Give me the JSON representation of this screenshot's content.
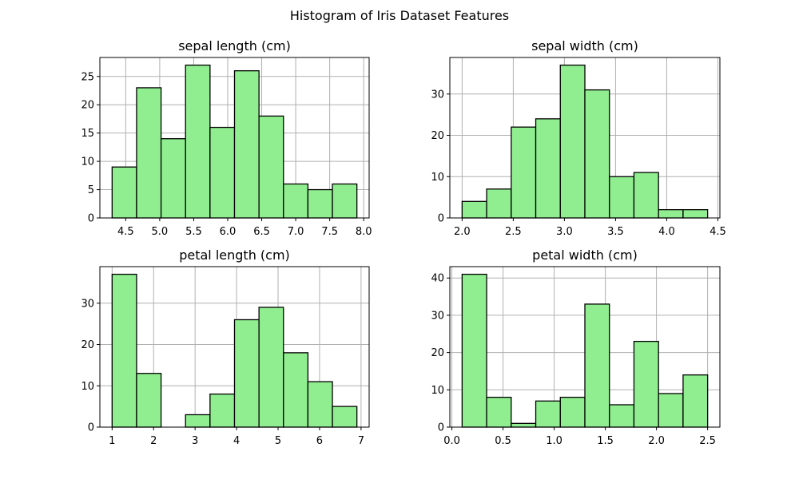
{
  "figure": {
    "title": "Histogram of Iris Dataset Features"
  },
  "style": {
    "bar_fill": "#90ee90",
    "bar_edge": "#000000",
    "grid_color": "#b0b0b0",
    "axis_color": "#000000"
  },
  "chart_data": [
    {
      "type": "bar",
      "title": "sepal length (cm)",
      "xlabel": "",
      "ylabel": "",
      "bin_edges": [
        4.3,
        4.66,
        5.02,
        5.38,
        5.74,
        6.1,
        6.46,
        6.82,
        7.18,
        7.54,
        7.9
      ],
      "values": [
        9,
        23,
        14,
        27,
        16,
        26,
        18,
        6,
        5,
        6
      ],
      "xlim": [
        4.12,
        8.08
      ],
      "ylim": [
        0,
        28.35
      ],
      "xticks": [
        4.5,
        5.0,
        5.5,
        6.0,
        6.5,
        7.0,
        7.5,
        8.0
      ],
      "xtick_labels": [
        "4.5",
        "5.0",
        "5.5",
        "6.0",
        "6.5",
        "7.0",
        "7.5",
        "8.0"
      ],
      "yticks": [
        0,
        5,
        10,
        15,
        20,
        25
      ],
      "ytick_labels": [
        "0",
        "5",
        "10",
        "15",
        "20",
        "25"
      ],
      "grid": true
    },
    {
      "type": "bar",
      "title": "sepal width (cm)",
      "xlabel": "",
      "ylabel": "",
      "bin_edges": [
        2.0,
        2.24,
        2.48,
        2.72,
        2.96,
        3.2,
        3.44,
        3.68,
        3.92,
        4.16,
        4.4
      ],
      "values": [
        4,
        7,
        22,
        24,
        37,
        31,
        10,
        11,
        2,
        2
      ],
      "xlim": [
        1.88,
        4.52
      ],
      "ylim": [
        0,
        38.85
      ],
      "xticks": [
        2.0,
        2.5,
        3.0,
        3.5,
        4.0,
        4.5
      ],
      "xtick_labels": [
        "2.0",
        "2.5",
        "3.0",
        "3.5",
        "4.0",
        "4.5"
      ],
      "yticks": [
        0,
        10,
        20,
        30
      ],
      "ytick_labels": [
        "0",
        "10",
        "20",
        "30"
      ],
      "grid": true
    },
    {
      "type": "bar",
      "title": "petal length (cm)",
      "xlabel": "",
      "ylabel": "",
      "bin_edges": [
        1.0,
        1.59,
        2.18,
        2.77,
        3.36,
        3.95,
        4.54,
        5.13,
        5.72,
        6.31,
        6.9
      ],
      "values": [
        37,
        13,
        0,
        3,
        8,
        26,
        29,
        18,
        11,
        5
      ],
      "xlim": [
        0.705,
        7.195
      ],
      "ylim": [
        0,
        38.85
      ],
      "xticks": [
        1,
        2,
        3,
        4,
        5,
        6,
        7
      ],
      "xtick_labels": [
        "1",
        "2",
        "3",
        "4",
        "5",
        "6",
        "7"
      ],
      "yticks": [
        0,
        10,
        20,
        30
      ],
      "ytick_labels": [
        "0",
        "10",
        "20",
        "30"
      ],
      "grid": true
    },
    {
      "type": "bar",
      "title": "petal width (cm)",
      "xlabel": "",
      "ylabel": "",
      "bin_edges": [
        0.1,
        0.34,
        0.58,
        0.82,
        1.06,
        1.3,
        1.54,
        1.78,
        2.02,
        2.26,
        2.5
      ],
      "values": [
        41,
        8,
        1,
        7,
        8,
        33,
        6,
        23,
        9,
        14
      ],
      "xlim": [
        -0.02,
        2.62
      ],
      "ylim": [
        0,
        43.05
      ],
      "xticks": [
        0.0,
        0.5,
        1.0,
        1.5,
        2.0,
        2.5
      ],
      "xtick_labels": [
        "0.0",
        "0.5",
        "1.0",
        "1.5",
        "2.0",
        "2.5"
      ],
      "yticks": [
        0,
        10,
        20,
        30,
        40
      ],
      "ytick_labels": [
        "0",
        "10",
        "20",
        "30",
        "40"
      ],
      "grid": true
    }
  ]
}
